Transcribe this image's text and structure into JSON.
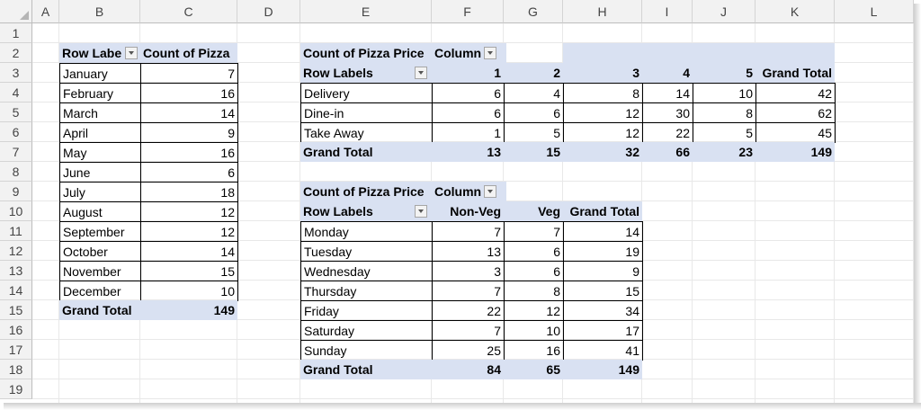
{
  "columns": [
    "A",
    "B",
    "C",
    "D",
    "E",
    "F",
    "G",
    "H",
    "I",
    "J",
    "K",
    "L"
  ],
  "rows": [
    "1",
    "2",
    "3",
    "4",
    "5",
    "6",
    "7",
    "8",
    "9",
    "10",
    "11",
    "12",
    "13",
    "14",
    "15",
    "16",
    "17",
    "18",
    "19"
  ],
  "pivot1": {
    "row_header": "Row Labe",
    "value_header": "Count of Pizza",
    "rows": [
      {
        "label": "January",
        "value": "7"
      },
      {
        "label": "February",
        "value": "16"
      },
      {
        "label": "March",
        "value": "14"
      },
      {
        "label": "April",
        "value": "9"
      },
      {
        "label": "May",
        "value": "16"
      },
      {
        "label": "June",
        "value": "6"
      },
      {
        "label": "July",
        "value": "18"
      },
      {
        "label": "August",
        "value": "12"
      },
      {
        "label": "September",
        "value": "12"
      },
      {
        "label": "October",
        "value": "14"
      },
      {
        "label": "November",
        "value": "15"
      },
      {
        "label": "December",
        "value": "10"
      }
    ],
    "total_label": "Grand Total",
    "total_value": "149"
  },
  "pivot2": {
    "value_header": "Count of Pizza Price",
    "column_labels": "Column",
    "row_labels": "Row Labels",
    "columns": [
      "1",
      "2",
      "3",
      "4",
      "5"
    ],
    "grand_total_header": "Grand Total",
    "rows": [
      {
        "label": "Delivery",
        "values": [
          "6",
          "4",
          "8",
          "14",
          "10"
        ],
        "total": "42"
      },
      {
        "label": "Dine-in",
        "values": [
          "6",
          "6",
          "12",
          "30",
          "8"
        ],
        "total": "62"
      },
      {
        "label": "Take Away",
        "values": [
          "1",
          "5",
          "12",
          "22",
          "5"
        ],
        "total": "45"
      }
    ],
    "total_label": "Grand Total",
    "total_values": [
      "13",
      "15",
      "32",
      "66",
      "23"
    ],
    "total_total": "149"
  },
  "pivot3": {
    "value_header": "Count of Pizza Price",
    "column_labels": "Column",
    "row_labels": "Row Labels",
    "columns": [
      "Non-Veg",
      "Veg"
    ],
    "grand_total_header": "Grand Total",
    "rows": [
      {
        "label": "Monday",
        "values": [
          "7",
          "7"
        ],
        "total": "14"
      },
      {
        "label": "Tuesday",
        "values": [
          "13",
          "6"
        ],
        "total": "19"
      },
      {
        "label": "Wednesday",
        "values": [
          "3",
          "6"
        ],
        "total": "9"
      },
      {
        "label": "Thursday",
        "values": [
          "7",
          "8"
        ],
        "total": "15"
      },
      {
        "label": "Friday",
        "values": [
          "22",
          "12"
        ],
        "total": "34"
      },
      {
        "label": "Saturday",
        "values": [
          "7",
          "10"
        ],
        "total": "17"
      },
      {
        "label": "Sunday",
        "values": [
          "25",
          "16"
        ],
        "total": "41"
      }
    ],
    "total_label": "Grand Total",
    "total_values": [
      "84",
      "65"
    ],
    "total_total": "149"
  },
  "colors": {
    "pivot_header_fill": "#d9e1f2",
    "gridline": "#e8e8e8",
    "header_bg": "#f2f2f2"
  }
}
